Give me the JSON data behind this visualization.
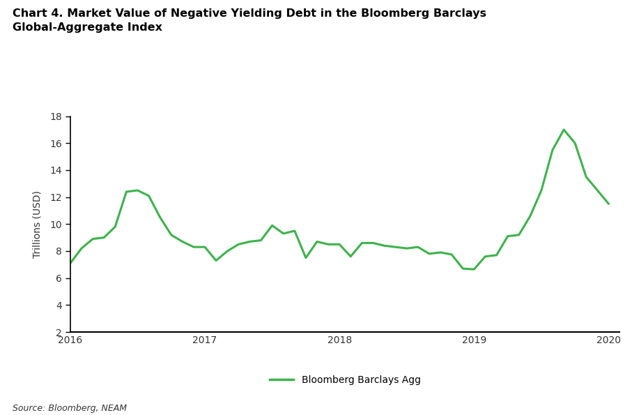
{
  "title": "Chart 4. Market Value of Negative Yielding Debt in the Bloomberg Barclays\nGlobal-Aggregate Index",
  "source": "Source: Bloomberg, NEAM",
  "ylabel": "Trillions (USD)",
  "legend_label": "Bloomberg Barclays Agg",
  "line_color": "#3cb34a",
  "background_color": "#ffffff",
  "ylim": [
    2,
    18
  ],
  "yticks": [
    2,
    4,
    6,
    8,
    10,
    12,
    14,
    16,
    18
  ],
  "xlim_start": 2016.0,
  "xlim_end": 2020.083,
  "xtick_labels": [
    "2016",
    "2017",
    "2018",
    "2019",
    "2020"
  ],
  "xtick_positions": [
    2016.0,
    2017.0,
    2018.0,
    2019.0,
    2020.0
  ],
  "x": [
    2016.0,
    2016.083,
    2016.167,
    2016.25,
    2016.333,
    2016.417,
    2016.5,
    2016.583,
    2016.667,
    2016.75,
    2016.833,
    2016.917,
    2017.0,
    2017.083,
    2017.167,
    2017.25,
    2017.333,
    2017.417,
    2017.5,
    2017.583,
    2017.667,
    2017.75,
    2017.833,
    2017.917,
    2018.0,
    2018.083,
    2018.167,
    2018.25,
    2018.333,
    2018.417,
    2018.5,
    2018.583,
    2018.667,
    2018.75,
    2018.833,
    2018.917,
    2019.0,
    2019.083,
    2019.167,
    2019.25,
    2019.333,
    2019.417,
    2019.5,
    2019.583,
    2019.667,
    2019.75,
    2019.833,
    2019.917,
    2020.0
  ],
  "y": [
    7.1,
    8.2,
    8.9,
    9.0,
    9.8,
    12.4,
    12.5,
    12.1,
    10.5,
    9.2,
    8.7,
    8.3,
    8.3,
    7.3,
    8.0,
    8.5,
    8.7,
    8.8,
    9.9,
    9.3,
    9.5,
    7.5,
    8.7,
    8.5,
    8.5,
    7.6,
    8.6,
    8.6,
    8.4,
    8.3,
    8.2,
    8.3,
    7.8,
    7.9,
    7.75,
    6.7,
    6.65,
    7.6,
    7.7,
    9.1,
    9.2,
    10.6,
    12.5,
    15.5,
    17.0,
    16.0,
    13.5,
    12.5,
    11.5
  ]
}
